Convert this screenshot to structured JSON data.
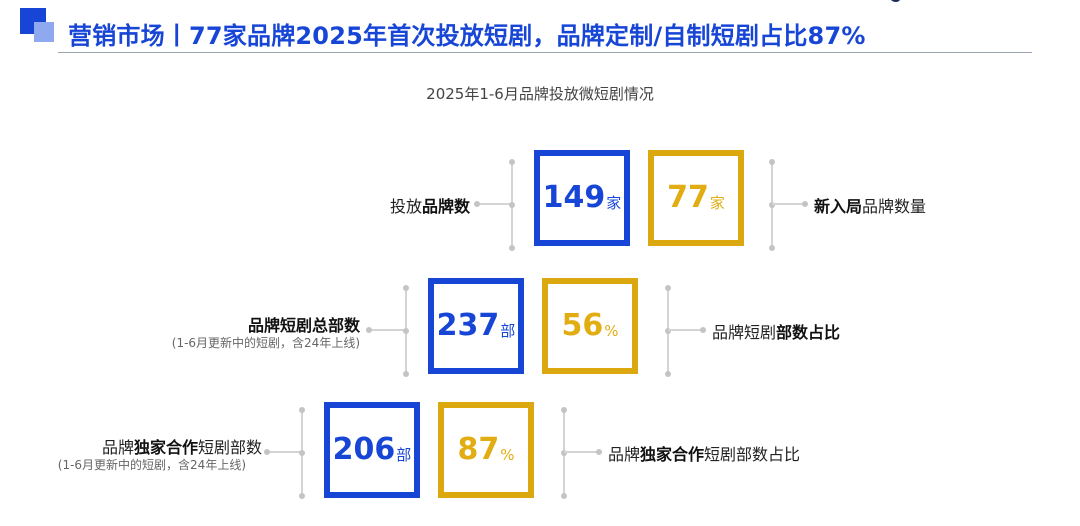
{
  "header": {
    "title": "营销市场丨77家品牌2025年首次投放短剧，品牌定制/自制短剧占比87%"
  },
  "subtitle": "2025年1-6月品牌投放微短剧情况",
  "colors": {
    "brand_blue": "#1746d6",
    "accent_gold": "#dba80f"
  },
  "rows": [
    {
      "left_label": {
        "plain1": "投放",
        "bold": "品牌数",
        "plain2": ""
      },
      "left_note": "",
      "blue_value": "149",
      "blue_unit": "家",
      "gold_value": "77",
      "gold_unit": "家",
      "right_label": {
        "plain1": "",
        "bold": "新入局",
        "plain2": "品牌数量"
      }
    },
    {
      "left_label": {
        "plain1": "",
        "bold": "品牌短剧总部数",
        "plain2": ""
      },
      "left_note": "(1-6月更新中的短剧，含24年上线)",
      "blue_value": "237",
      "blue_unit": "部",
      "gold_value": "56",
      "gold_unit": "%",
      "right_label": {
        "plain1": "品牌短剧",
        "bold": "部数占比",
        "plain2": ""
      }
    },
    {
      "left_label": {
        "plain1": "品牌",
        "bold": "独家合作",
        "plain2": "短剧部数"
      },
      "left_note": "(1-6月更新中的短剧，含24年上线)",
      "blue_value": "206",
      "blue_unit": "部",
      "gold_value": "87",
      "gold_unit": "%",
      "right_label": {
        "plain1": "品牌",
        "bold": "独家合作",
        "plain2": "短剧部数占比"
      }
    }
  ]
}
